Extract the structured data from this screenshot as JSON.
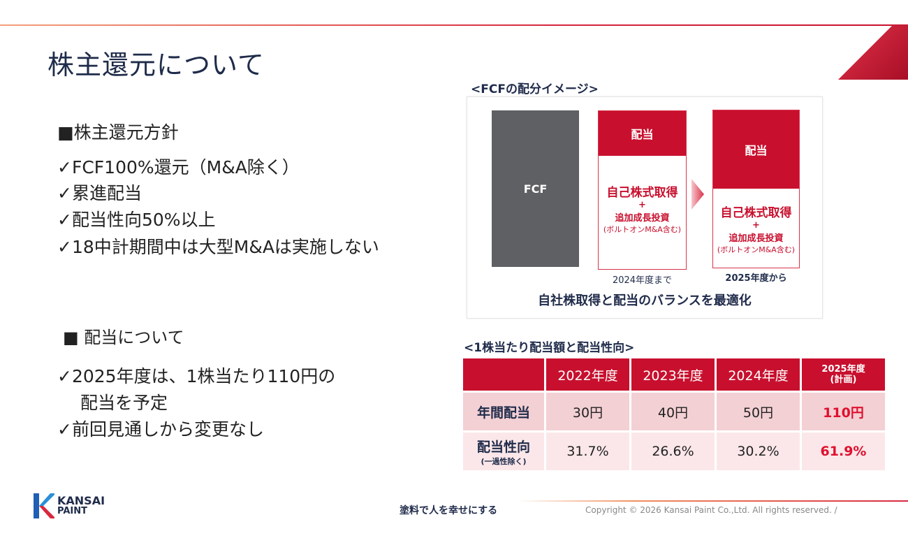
{
  "title": "株主還元について",
  "policy": {
    "heading": "■株主還元方針",
    "items": [
      "✓FCF100%還元（M&A除く）",
      "✓累進配当",
      "✓配当性向50%以上",
      "✓18中計期間中は大型M&Aは実施しない"
    ]
  },
  "dividend": {
    "heading": "■ 配当について",
    "items": [
      "✓2025年度は、1株当たり110円の",
      "配当を予定",
      "✓前回見通しから変更なし"
    ]
  },
  "fcf": {
    "heading": "<FCFの配分イメージ>",
    "fcf_label": "FCF",
    "div_label": "配当",
    "buyback": "自己株式取得",
    "plus": "+",
    "growth": "追加成長投資",
    "bolt": "(ボルトオンM&A含む)",
    "until_2024": "2024年度まで",
    "from_2025": "2025年度から",
    "optimize": "自社株取得と配当のバランスを最適化"
  },
  "table": {
    "heading": "<1株当たり配当額と配当性向>",
    "headers": [
      "2022年度",
      "2023年度",
      "2024年度",
      "2025年度",
      "(計画)"
    ],
    "rows": [
      {
        "label": "年間配当",
        "sub": "",
        "values": [
          "30円",
          "40円",
          "50円",
          "110円"
        ]
      },
      {
        "label": "配当性向",
        "sub": "(一過性除く)",
        "values": [
          "31.7%",
          "26.6%",
          "30.2%",
          "61.9%"
        ]
      }
    ]
  },
  "footer": {
    "logo_top": "KANSAI",
    "logo_bottom": "PAINT",
    "slogan": "塗料で人を幸せにする",
    "copyright": "Copyright © 2026 Kansai Paint Co.,Ltd. All rights reserved.  /"
  }
}
